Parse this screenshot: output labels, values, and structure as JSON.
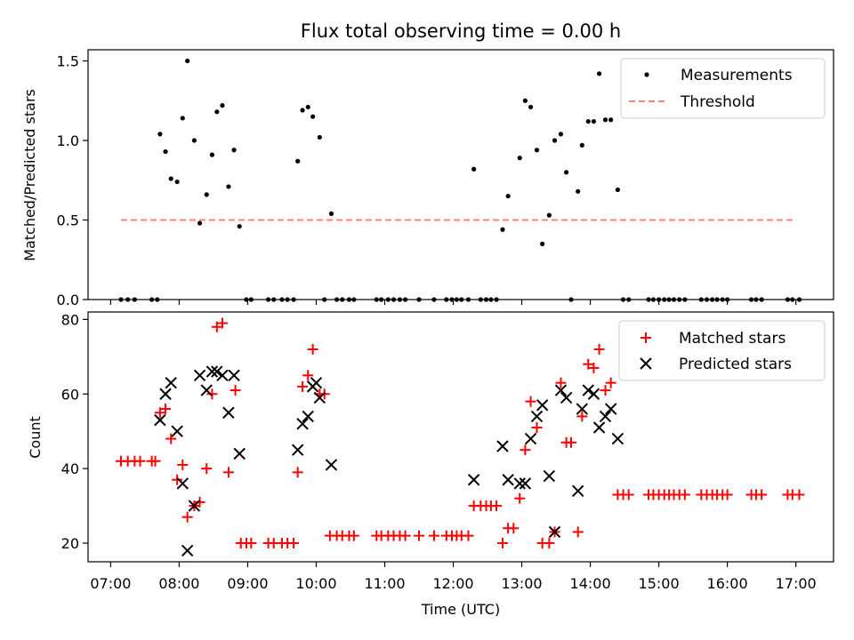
{
  "chart_data": [
    {
      "type": "scatter",
      "title": "Flux total observing time = 0.00 h",
      "xlabel": "",
      "ylabel": "Matched/Predicted stars",
      "xlim": [
        6.67,
        17.55
      ],
      "ylim": [
        0.0,
        1.57
      ],
      "xticks": [
        7,
        8,
        9,
        10,
        11,
        12,
        13,
        14,
        15,
        16,
        17
      ],
      "yticks": [
        0.0,
        0.5,
        1.0,
        1.5
      ],
      "ytick_labels": [
        "0.0",
        "0.5",
        "1.0",
        "1.5"
      ],
      "legend_position": "top-right",
      "legend": [
        "Measurements",
        "Threshold"
      ],
      "threshold": {
        "name": "Threshold",
        "y": 0.5,
        "x_range": [
          7.15,
          17.0
        ],
        "color": "#ff8080",
        "style": "dashed"
      },
      "series": [
        {
          "name": "Measurements",
          "marker": "dot",
          "color": "#000000",
          "points": [
            [
              7.15,
              0
            ],
            [
              7.25,
              0
            ],
            [
              7.35,
              0
            ],
            [
              7.6,
              0
            ],
            [
              7.68,
              0
            ],
            [
              7.72,
              1.04
            ],
            [
              7.8,
              0.93
            ],
            [
              7.88,
              0.76
            ],
            [
              7.97,
              0.74
            ],
            [
              8.05,
              1.14
            ],
            [
              8.12,
              1.5
            ],
            [
              8.22,
              1.0
            ],
            [
              8.3,
              0.48
            ],
            [
              8.4,
              0.66
            ],
            [
              8.48,
              0.91
            ],
            [
              8.55,
              1.18
            ],
            [
              8.63,
              1.22
            ],
            [
              8.72,
              0.71
            ],
            [
              8.8,
              0.94
            ],
            [
              8.88,
              0.46
            ],
            [
              8.98,
              0
            ],
            [
              9.05,
              0
            ],
            [
              9.3,
              0
            ],
            [
              9.38,
              0
            ],
            [
              9.5,
              0
            ],
            [
              9.58,
              0
            ],
            [
              9.67,
              0
            ],
            [
              9.73,
              0.87
            ],
            [
              9.8,
              1.19
            ],
            [
              9.88,
              1.21
            ],
            [
              9.95,
              1.15
            ],
            [
              10.05,
              1.02
            ],
            [
              10.22,
              0.54
            ],
            [
              10.12,
              0
            ],
            [
              10.3,
              0
            ],
            [
              10.38,
              0
            ],
            [
              10.48,
              0
            ],
            [
              10.55,
              0
            ],
            [
              10.88,
              0
            ],
            [
              10.95,
              0
            ],
            [
              11.05,
              0
            ],
            [
              11.13,
              0
            ],
            [
              11.22,
              0
            ],
            [
              11.3,
              0
            ],
            [
              11.5,
              0
            ],
            [
              11.72,
              0
            ],
            [
              11.9,
              0
            ],
            [
              11.98,
              0
            ],
            [
              12.05,
              0
            ],
            [
              12.12,
              0
            ],
            [
              12.22,
              0
            ],
            [
              12.3,
              0.82
            ],
            [
              12.4,
              0
            ],
            [
              12.48,
              0
            ],
            [
              12.55,
              0
            ],
            [
              12.63,
              0
            ],
            [
              12.72,
              0.44
            ],
            [
              12.8,
              0.65
            ],
            [
              12.97,
              0.89
            ],
            [
              13.05,
              1.25
            ],
            [
              13.13,
              1.21
            ],
            [
              13.22,
              0.94
            ],
            [
              13.3,
              0.35
            ],
            [
              13.4,
              0.53
            ],
            [
              13.48,
              1.0
            ],
            [
              13.57,
              1.04
            ],
            [
              13.65,
              0.8
            ],
            [
              13.82,
              0.68
            ],
            [
              13.88,
              0.97
            ],
            [
              13.97,
              1.12
            ],
            [
              14.05,
              1.12
            ],
            [
              14.13,
              1.42
            ],
            [
              14.22,
              1.13
            ],
            [
              14.3,
              1.13
            ],
            [
              14.4,
              0.69
            ],
            [
              13.72,
              0
            ],
            [
              14.48,
              0
            ],
            [
              14.56,
              0
            ],
            [
              14.85,
              0
            ],
            [
              14.92,
              0
            ],
            [
              15.0,
              0
            ],
            [
              15.08,
              0
            ],
            [
              15.15,
              0
            ],
            [
              15.22,
              0
            ],
            [
              15.3,
              0
            ],
            [
              15.38,
              0
            ],
            [
              15.62,
              0
            ],
            [
              15.7,
              0
            ],
            [
              15.78,
              0
            ],
            [
              15.85,
              0
            ],
            [
              15.93,
              0
            ],
            [
              16.0,
              0
            ],
            [
              16.35,
              0
            ],
            [
              16.42,
              0
            ],
            [
              16.5,
              0
            ],
            [
              16.88,
              0
            ],
            [
              16.95,
              0
            ],
            [
              17.05,
              0
            ]
          ]
        }
      ]
    },
    {
      "type": "scatter",
      "title": "",
      "xlabel": "Time (UTC)",
      "ylabel": "Count",
      "xlim": [
        6.67,
        17.55
      ],
      "ylim": [
        15,
        82
      ],
      "xticks": [
        7,
        8,
        9,
        10,
        11,
        12,
        13,
        14,
        15,
        16,
        17
      ],
      "xtick_labels": [
        "07:00",
        "08:00",
        "09:00",
        "10:00",
        "11:00",
        "12:00",
        "13:00",
        "14:00",
        "15:00",
        "16:00",
        "17:00"
      ],
      "yticks": [
        20,
        40,
        60,
        80
      ],
      "ytick_labels": [
        "20",
        "40",
        "60",
        "80"
      ],
      "legend_position": "top-right",
      "legend": [
        "Matched stars",
        "Predicted stars"
      ],
      "series": [
        {
          "name": "Matched stars",
          "marker": "plus",
          "color": "#ff0000",
          "points": [
            [
              7.15,
              42
            ],
            [
              7.25,
              42
            ],
            [
              7.35,
              42
            ],
            [
              7.43,
              42
            ],
            [
              7.6,
              42
            ],
            [
              7.65,
              42
            ],
            [
              7.72,
              55
            ],
            [
              7.8,
              56
            ],
            [
              7.88,
              48
            ],
            [
              7.97,
              37
            ],
            [
              8.05,
              41
            ],
            [
              8.12,
              27
            ],
            [
              8.22,
              30
            ],
            [
              8.3,
              31
            ],
            [
              8.4,
              40
            ],
            [
              8.48,
              60
            ],
            [
              8.55,
              78
            ],
            [
              8.63,
              79
            ],
            [
              8.72,
              39
            ],
            [
              8.82,
              61
            ],
            [
              8.9,
              20
            ],
            [
              8.98,
              20
            ],
            [
              9.05,
              20
            ],
            [
              9.3,
              20
            ],
            [
              9.38,
              20
            ],
            [
              9.5,
              20
            ],
            [
              9.58,
              20
            ],
            [
              9.67,
              20
            ],
            [
              9.73,
              39
            ],
            [
              9.8,
              62
            ],
            [
              9.88,
              65
            ],
            [
              9.95,
              72
            ],
            [
              10.05,
              60
            ],
            [
              10.12,
              60
            ],
            [
              10.2,
              22
            ],
            [
              10.3,
              22
            ],
            [
              10.38,
              22
            ],
            [
              10.48,
              22
            ],
            [
              10.55,
              22
            ],
            [
              10.88,
              22
            ],
            [
              10.95,
              22
            ],
            [
              11.05,
              22
            ],
            [
              11.13,
              22
            ],
            [
              11.22,
              22
            ],
            [
              11.3,
              22
            ],
            [
              11.5,
              22
            ],
            [
              11.72,
              22
            ],
            [
              11.9,
              22
            ],
            [
              11.98,
              22
            ],
            [
              12.05,
              22
            ],
            [
              12.12,
              22
            ],
            [
              12.22,
              22
            ],
            [
              12.3,
              30
            ],
            [
              12.4,
              30
            ],
            [
              12.48,
              30
            ],
            [
              12.55,
              30
            ],
            [
              12.63,
              30
            ],
            [
              12.72,
              20
            ],
            [
              12.8,
              24
            ],
            [
              12.88,
              24
            ],
            [
              12.97,
              32
            ],
            [
              13.05,
              45
            ],
            [
              13.13,
              58
            ],
            [
              13.22,
              51
            ],
            [
              13.3,
              20
            ],
            [
              13.4,
              20
            ],
            [
              13.48,
              23
            ],
            [
              13.57,
              63
            ],
            [
              13.65,
              47
            ],
            [
              13.72,
              47
            ],
            [
              13.82,
              23
            ],
            [
              13.88,
              54
            ],
            [
              13.97,
              68
            ],
            [
              14.05,
              67
            ],
            [
              14.13,
              72
            ],
            [
              14.22,
              61
            ],
            [
              14.3,
              63
            ],
            [
              14.4,
              33
            ],
            [
              14.48,
              33
            ],
            [
              14.56,
              33
            ],
            [
              14.85,
              33
            ],
            [
              14.92,
              33
            ],
            [
              15.0,
              33
            ],
            [
              15.08,
              33
            ],
            [
              15.15,
              33
            ],
            [
              15.22,
              33
            ],
            [
              15.3,
              33
            ],
            [
              15.38,
              33
            ],
            [
              15.62,
              33
            ],
            [
              15.7,
              33
            ],
            [
              15.78,
              33
            ],
            [
              15.85,
              33
            ],
            [
              15.93,
              33
            ],
            [
              16.0,
              33
            ],
            [
              16.35,
              33
            ],
            [
              16.42,
              33
            ],
            [
              16.5,
              33
            ],
            [
              16.88,
              33
            ],
            [
              16.95,
              33
            ],
            [
              17.05,
              33
            ]
          ]
        },
        {
          "name": "Predicted stars",
          "marker": "x",
          "color": "#000000",
          "points": [
            [
              7.72,
              53
            ],
            [
              7.8,
              60
            ],
            [
              7.88,
              63
            ],
            [
              7.97,
              50
            ],
            [
              8.05,
              36
            ],
            [
              8.12,
              18
            ],
            [
              8.22,
              30
            ],
            [
              8.3,
              65
            ],
            [
              8.4,
              61
            ],
            [
              8.48,
              66
            ],
            [
              8.55,
              66
            ],
            [
              8.63,
              65
            ],
            [
              8.72,
              55
            ],
            [
              8.8,
              65
            ],
            [
              8.88,
              44
            ],
            [
              9.73,
              45
            ],
            [
              9.8,
              52
            ],
            [
              9.88,
              54
            ],
            [
              9.95,
              62
            ],
            [
              10.0,
              63
            ],
            [
              10.05,
              59
            ],
            [
              10.22,
              41
            ],
            [
              12.3,
              37
            ],
            [
              12.72,
              46
            ],
            [
              12.8,
              37
            ],
            [
              12.97,
              36
            ],
            [
              13.05,
              36
            ],
            [
              13.13,
              48
            ],
            [
              13.22,
              54
            ],
            [
              13.3,
              57
            ],
            [
              13.4,
              38
            ],
            [
              13.48,
              23
            ],
            [
              13.57,
              61
            ],
            [
              13.65,
              59
            ],
            [
              13.82,
              34
            ],
            [
              13.88,
              56
            ],
            [
              13.97,
              61
            ],
            [
              14.05,
              60
            ],
            [
              14.13,
              51
            ],
            [
              14.22,
              54
            ],
            [
              14.3,
              56
            ],
            [
              14.4,
              48
            ]
          ]
        }
      ]
    }
  ]
}
